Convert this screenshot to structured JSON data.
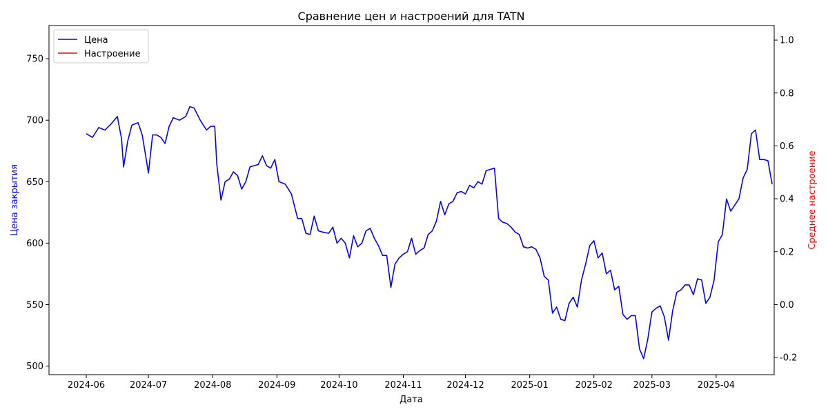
{
  "chart_data": {
    "type": "line",
    "title": "Сравнение цен и настроений для TATN",
    "xlabel": "Дата",
    "ylabel_left": "Цена закрытия",
    "ylabel_right": "Среднее настроение",
    "x_ticks": [
      "2024-06",
      "2024-07",
      "2024-08",
      "2024-09",
      "2024-10",
      "2024-11",
      "2024-12",
      "2025-01",
      "2025-02",
      "2025-03",
      "2025-04"
    ],
    "x_tick_dates": [
      "2024-06-01",
      "2024-07-01",
      "2024-08-01",
      "2024-09-01",
      "2024-10-01",
      "2024-11-01",
      "2024-12-01",
      "2025-01-01",
      "2025-02-01",
      "2025-03-01",
      "2025-04-01"
    ],
    "xlim": [
      "2024-05-14",
      "2025-04-29"
    ],
    "ylim_left": [
      493,
      777
    ],
    "ylim_right": [
      -0.265,
      1.055
    ],
    "yticks_left": [
      500,
      550,
      600,
      650,
      700,
      750
    ],
    "yticks_right": [
      -0.2,
      0.0,
      0.2,
      0.4,
      0.6,
      0.8,
      1.0
    ],
    "grid": false,
    "legend_position": "top-left",
    "colors": {
      "price": "#0000ff",
      "sentiment": "#ff0000",
      "axis": "#000000",
      "left_label": "#0000ff",
      "right_label": "#ff0000"
    },
    "series": [
      {
        "name": "Цена",
        "axis": "left",
        "points": [
          [
            "2024-06-01",
            689
          ],
          [
            "2024-06-04",
            686
          ],
          [
            "2024-06-07",
            694
          ],
          [
            "2024-06-10",
            692
          ],
          [
            "2024-06-13",
            697
          ],
          [
            "2024-06-16",
            703
          ],
          [
            "2024-06-18",
            685
          ],
          [
            "2024-06-19",
            662
          ],
          [
            "2024-06-21",
            683
          ],
          [
            "2024-06-23",
            696
          ],
          [
            "2024-06-26",
            698
          ],
          [
            "2024-06-28",
            688
          ],
          [
            "2024-07-01",
            657
          ],
          [
            "2024-07-03",
            688
          ],
          [
            "2024-07-05",
            688
          ],
          [
            "2024-07-07",
            686
          ],
          [
            "2024-07-09",
            681
          ],
          [
            "2024-07-11",
            695
          ],
          [
            "2024-07-13",
            702
          ],
          [
            "2024-07-16",
            700
          ],
          [
            "2024-07-19",
            703
          ],
          [
            "2024-07-21",
            711
          ],
          [
            "2024-07-23",
            710
          ],
          [
            "2024-07-26",
            700
          ],
          [
            "2024-07-29",
            692
          ],
          [
            "2024-07-31",
            695
          ],
          [
            "2024-08-02",
            695
          ],
          [
            "2024-08-03",
            664
          ],
          [
            "2024-08-05",
            635
          ],
          [
            "2024-08-07",
            650
          ],
          [
            "2024-08-09",
            652
          ],
          [
            "2024-08-11",
            658
          ],
          [
            "2024-08-13",
            655
          ],
          [
            "2024-08-15",
            644
          ],
          [
            "2024-08-17",
            650
          ],
          [
            "2024-08-19",
            662
          ],
          [
            "2024-08-21",
            663
          ],
          [
            "2024-08-23",
            664
          ],
          [
            "2024-08-25",
            671
          ],
          [
            "2024-08-27",
            663
          ],
          [
            "2024-08-29",
            661
          ],
          [
            "2024-08-31",
            668
          ],
          [
            "2024-09-02",
            650
          ],
          [
            "2024-09-05",
            648
          ],
          [
            "2024-09-08",
            640
          ],
          [
            "2024-09-11",
            620
          ],
          [
            "2024-09-13",
            620
          ],
          [
            "2024-09-15",
            608
          ],
          [
            "2024-09-17",
            607
          ],
          [
            "2024-09-19",
            622
          ],
          [
            "2024-09-21",
            610
          ],
          [
            "2024-09-23",
            609
          ],
          [
            "2024-09-26",
            608
          ],
          [
            "2024-09-28",
            613
          ],
          [
            "2024-09-30",
            600
          ],
          [
            "2024-10-02",
            604
          ],
          [
            "2024-10-04",
            600
          ],
          [
            "2024-10-06",
            588
          ],
          [
            "2024-10-08",
            606
          ],
          [
            "2024-10-10",
            597
          ],
          [
            "2024-10-12",
            600
          ],
          [
            "2024-10-14",
            610
          ],
          [
            "2024-10-16",
            612
          ],
          [
            "2024-10-18",
            604
          ],
          [
            "2024-10-20",
            598
          ],
          [
            "2024-10-22",
            590
          ],
          [
            "2024-10-24",
            590
          ],
          [
            "2024-10-26",
            564
          ],
          [
            "2024-10-28",
            583
          ],
          [
            "2024-10-30",
            588
          ],
          [
            "2024-11-01",
            591
          ],
          [
            "2024-11-03",
            593
          ],
          [
            "2024-11-05",
            604
          ],
          [
            "2024-11-07",
            591
          ],
          [
            "2024-11-09",
            594
          ],
          [
            "2024-11-11",
            596
          ],
          [
            "2024-11-13",
            607
          ],
          [
            "2024-11-15",
            610
          ],
          [
            "2024-11-17",
            618
          ],
          [
            "2024-11-19",
            634
          ],
          [
            "2024-11-21",
            623
          ],
          [
            "2024-11-23",
            632
          ],
          [
            "2024-11-25",
            634
          ],
          [
            "2024-11-27",
            641
          ],
          [
            "2024-11-29",
            642
          ],
          [
            "2024-12-01",
            640
          ],
          [
            "2024-12-03",
            647
          ],
          [
            "2024-12-05",
            645
          ],
          [
            "2024-12-07",
            650
          ],
          [
            "2024-12-09",
            648
          ],
          [
            "2024-12-11",
            659
          ],
          [
            "2024-12-13",
            660
          ],
          [
            "2024-12-15",
            661
          ],
          [
            "2024-12-17",
            620
          ],
          [
            "2024-12-19",
            617
          ],
          [
            "2024-12-21",
            616
          ],
          [
            "2024-12-23",
            613
          ],
          [
            "2024-12-25",
            609
          ],
          [
            "2024-12-27",
            607
          ],
          [
            "2024-12-29",
            597
          ],
          [
            "2024-12-31",
            596
          ],
          [
            "2025-01-02",
            597
          ],
          [
            "2025-01-04",
            595
          ],
          [
            "2025-01-06",
            588
          ],
          [
            "2025-01-08",
            573
          ],
          [
            "2025-01-10",
            570
          ],
          [
            "2025-01-12",
            543
          ],
          [
            "2025-01-14",
            548
          ],
          [
            "2025-01-16",
            538
          ],
          [
            "2025-01-18",
            537
          ],
          [
            "2025-01-20",
            551
          ],
          [
            "2025-01-22",
            556
          ],
          [
            "2025-01-24",
            548
          ],
          [
            "2025-01-26",
            570
          ],
          [
            "2025-01-28",
            583
          ],
          [
            "2025-01-30",
            598
          ],
          [
            "2025-02-01",
            602
          ],
          [
            "2025-02-03",
            588
          ],
          [
            "2025-02-05",
            592
          ],
          [
            "2025-02-07",
            575
          ],
          [
            "2025-02-09",
            578
          ],
          [
            "2025-02-11",
            562
          ],
          [
            "2025-02-13",
            565
          ],
          [
            "2025-02-15",
            542
          ],
          [
            "2025-02-17",
            538
          ],
          [
            "2025-02-19",
            541
          ],
          [
            "2025-02-21",
            541
          ],
          [
            "2025-02-23",
            514
          ],
          [
            "2025-02-25",
            506
          ],
          [
            "2025-02-27",
            522
          ],
          [
            "2025-03-01",
            544
          ],
          [
            "2025-03-03",
            547
          ],
          [
            "2025-03-05",
            549
          ],
          [
            "2025-03-07",
            540
          ],
          [
            "2025-03-09",
            521
          ],
          [
            "2025-03-11",
            545
          ],
          [
            "2025-03-13",
            560
          ],
          [
            "2025-03-15",
            562
          ],
          [
            "2025-03-17",
            566
          ],
          [
            "2025-03-19",
            566
          ],
          [
            "2025-03-21",
            558
          ],
          [
            "2025-03-23",
            571
          ],
          [
            "2025-03-25",
            570
          ],
          [
            "2025-03-27",
            551
          ],
          [
            "2025-03-29",
            556
          ],
          [
            "2025-03-31",
            570
          ],
          [
            "2025-04-02",
            601
          ],
          [
            "2025-04-04",
            607
          ],
          [
            "2025-04-06",
            636
          ],
          [
            "2025-04-08",
            626
          ],
          [
            "2025-04-10",
            631
          ],
          [
            "2025-04-12",
            636
          ],
          [
            "2025-04-14",
            653
          ],
          [
            "2025-04-16",
            660
          ],
          [
            "2025-04-18",
            689
          ],
          [
            "2025-04-20",
            692
          ],
          [
            "2025-04-22",
            668
          ],
          [
            "2025-04-24",
            668
          ],
          [
            "2025-04-26",
            667
          ],
          [
            "2025-04-28",
            648
          ]
        ]
      },
      {
        "name": "Настроение",
        "axis": "right",
        "points": []
      }
    ]
  },
  "legend": {
    "items": [
      {
        "label": "Цена",
        "color": "#0000ff"
      },
      {
        "label": "Настроение",
        "color": "#ff0000"
      }
    ]
  }
}
